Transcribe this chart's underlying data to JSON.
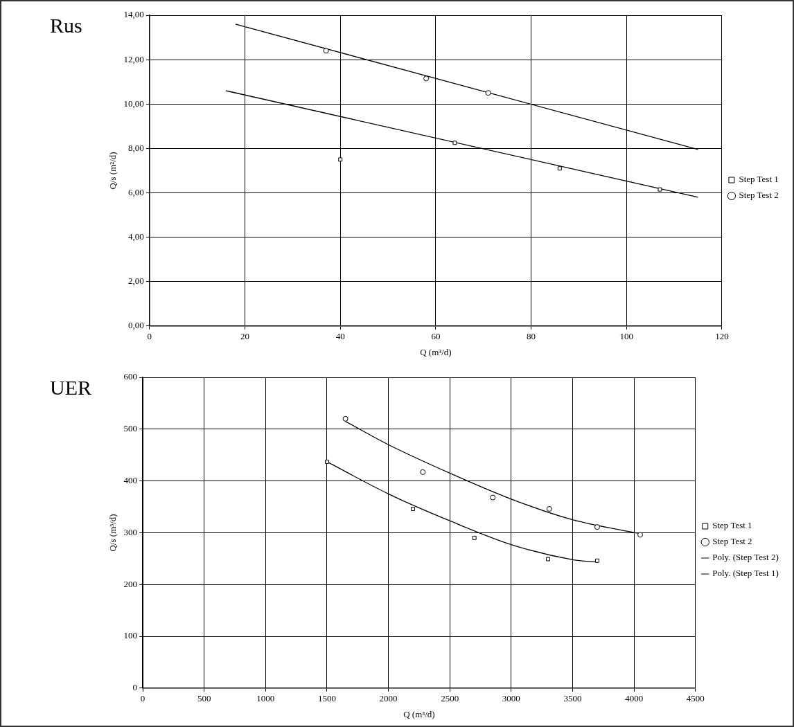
{
  "chart_data": [
    {
      "type": "scatter",
      "title": "Rus",
      "xlabel": "Q (m³/d)",
      "ylabel": "Q/s (m²/d)",
      "xlim": [
        0,
        120
      ],
      "xticks": [
        0,
        20,
        40,
        60,
        80,
        100,
        120
      ],
      "ylim": [
        0,
        14
      ],
      "yticks": [
        {
          "value": 0,
          "label": "0,00"
        },
        {
          "value": 2,
          "label": "2,00"
        },
        {
          "value": 4,
          "label": "4,00"
        },
        {
          "value": 6,
          "label": "6,00"
        },
        {
          "value": 8,
          "label": "8,00"
        },
        {
          "value": 10,
          "label": "10,00"
        },
        {
          "value": 12,
          "label": "12,00"
        },
        {
          "value": 14,
          "label": "14,00"
        }
      ],
      "grid": true,
      "legend": "right",
      "series": [
        {
          "name": "Step Test 1",
          "type": "scatter",
          "marker": "square",
          "color": "#000000",
          "x": [
            40,
            64,
            86,
            107
          ],
          "values": [
            7.5,
            8.25,
            7.1,
            6.15
          ]
        },
        {
          "name": "Step Test 2",
          "type": "scatter",
          "marker": "circle",
          "color": "#000000",
          "x": [
            37,
            58,
            71
          ],
          "values": [
            12.4,
            11.15,
            10.5
          ]
        },
        {
          "type": "line",
          "marker": "none",
          "color": "#000000",
          "x": [
            16,
            115
          ],
          "values": [
            10.6,
            5.8
          ]
        },
        {
          "type": "line",
          "marker": "none",
          "color": "#000000",
          "x": [
            18,
            115
          ],
          "values": [
            13.6,
            7.95
          ]
        }
      ]
    },
    {
      "type": "scatter",
      "title": "UER",
      "xlabel": "Q (m³/d)",
      "ylabel": "Q/s (m³/d)",
      "xlim": [
        0,
        4500
      ],
      "xticks": [
        0,
        500,
        1000,
        1500,
        2000,
        2500,
        3000,
        3500,
        4000,
        4500
      ],
      "ylim": [
        0,
        600
      ],
      "yticks": [
        0,
        100,
        200,
        300,
        400,
        500,
        600
      ],
      "grid": true,
      "legend": "right",
      "series": [
        {
          "name": "Step Test 1",
          "type": "scatter",
          "marker": "square",
          "color": "#000000",
          "x": [
            1500,
            2200,
            2700,
            3300,
            3700
          ],
          "values": [
            437,
            346,
            290,
            249,
            246
          ]
        },
        {
          "name": "Step Test 2",
          "type": "scatter",
          "marker": "circle",
          "color": "#000000",
          "x": [
            1650,
            2280,
            2850,
            3310,
            3700,
            4050
          ],
          "values": [
            520,
            417,
            368,
            346,
            311,
            296
          ]
        },
        {
          "name": "Poly. (Step Test 2)",
          "type": "line",
          "marker": "none",
          "color": "#000000",
          "x": [
            1650,
            2000,
            2500,
            3000,
            3500,
            4050
          ],
          "values": [
            515,
            470,
            415,
            365,
            325,
            298
          ]
        },
        {
          "name": "Poly. (Step Test 1)",
          "type": "line",
          "marker": "none",
          "color": "#000000",
          "x": [
            1500,
            2000,
            2500,
            3000,
            3500,
            3700
          ],
          "values": [
            437,
            375,
            323,
            277,
            248,
            243
          ]
        }
      ]
    }
  ]
}
